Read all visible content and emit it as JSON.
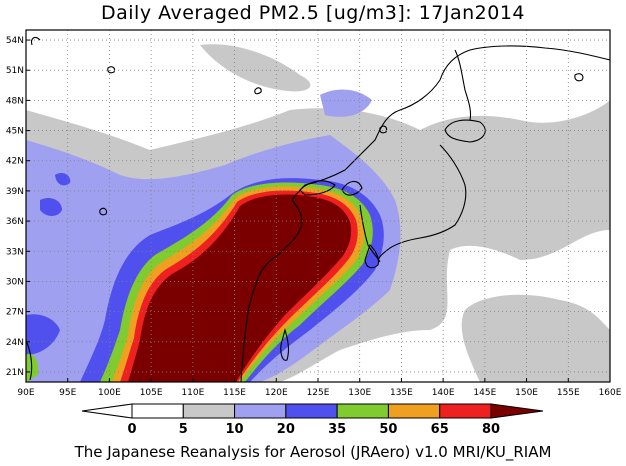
{
  "title": "Daily Averaged PM2.5 [ug/m3]: 17Jan2014",
  "footer": "The Japanese Reanalysis for Aerosol (JRAero) v1.0 MRI/KU_RIAM",
  "map": {
    "lon_range": [
      90,
      160
    ],
    "lat_range": [
      20,
      55
    ],
    "lon_ticks": [
      "90E",
      "95E",
      "100E",
      "105E",
      "110E",
      "115E",
      "120E",
      "125E",
      "130E",
      "135E",
      "140E",
      "145E",
      "150E",
      "155E",
      "160E"
    ],
    "lat_ticks": [
      "21N",
      "24N",
      "27N",
      "30N",
      "33N",
      "36N",
      "39N",
      "42N",
      "45N",
      "48N",
      "51N",
      "54N"
    ],
    "grid": true
  },
  "colorbar": {
    "labels": [
      "0",
      "5",
      "10",
      "20",
      "35",
      "50",
      "65",
      "80"
    ],
    "colors": [
      "#ffffff",
      "#c8c8c8",
      "#a0a0f0",
      "#5050ee",
      "#80cc30",
      "#f0a020",
      "#ee2020",
      "#7a0000"
    ]
  }
}
